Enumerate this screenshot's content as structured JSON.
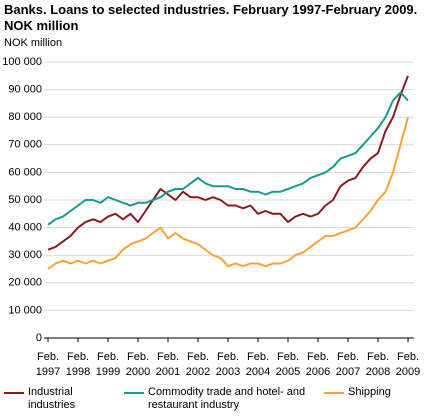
{
  "chart_data": {
    "type": "line",
    "title": "Banks. Loans to selected industries. February 1997-February 2009. NOK million",
    "y_label": "NOK million",
    "categories": [
      "Feb. 1997",
      null,
      null,
      null,
      "Feb. 1998",
      null,
      null,
      null,
      "Feb. 1999",
      null,
      null,
      null,
      "Feb. 2000",
      null,
      null,
      null,
      "Feb. 2001",
      null,
      null,
      null,
      "Feb. 2002",
      null,
      null,
      null,
      "Feb. 2003",
      null,
      null,
      null,
      "Feb. 2004",
      null,
      null,
      null,
      "Feb. 2005",
      null,
      null,
      null,
      "Feb. 2006",
      null,
      null,
      null,
      "Feb. 2007",
      null,
      null,
      null,
      "Feb. 2008",
      null,
      null,
      null,
      "Feb. 2009"
    ],
    "series": [
      {
        "name": "Industrial industries",
        "color": "#8b1a1f",
        "values": [
          32000,
          33000,
          35000,
          37000,
          40000,
          42000,
          43000,
          42000,
          44000,
          45000,
          43000,
          45000,
          42000,
          46000,
          50000,
          54000,
          52000,
          50000,
          53000,
          51000,
          51000,
          50000,
          51000,
          50000,
          48000,
          48000,
          47000,
          48000,
          45000,
          46000,
          45000,
          45000,
          42000,
          44000,
          45000,
          44000,
          45000,
          48000,
          50000,
          55000,
          57000,
          58000,
          62000,
          65000,
          67000,
          75000,
          80000,
          88000,
          95000
        ]
      },
      {
        "name": "Commodity trade and hotel- and restaurant industry",
        "color": "#1a9a8f",
        "values": [
          41000,
          43000,
          44000,
          46000,
          48000,
          50000,
          50000,
          49000,
          51000,
          50000,
          49000,
          48000,
          49000,
          49000,
          50000,
          51000,
          53000,
          54000,
          54000,
          56000,
          58000,
          56000,
          55000,
          55000,
          55000,
          54000,
          54000,
          53000,
          53000,
          52000,
          53000,
          53000,
          54000,
          55000,
          56000,
          58000,
          59000,
          60000,
          62000,
          65000,
          66000,
          67000,
          70000,
          73000,
          76000,
          80000,
          86000,
          89000,
          86000
        ]
      },
      {
        "name": "Shipping",
        "color": "#f7a239",
        "values": [
          25000,
          27000,
          28000,
          27000,
          28000,
          27000,
          28000,
          27000,
          28000,
          29000,
          32000,
          34000,
          35000,
          36000,
          38000,
          40000,
          36000,
          38000,
          36000,
          35000,
          34000,
          32000,
          30000,
          29000,
          26000,
          27000,
          26000,
          27000,
          27000,
          26000,
          27000,
          27000,
          28000,
          30000,
          31000,
          33000,
          35000,
          37000,
          37000,
          38000,
          39000,
          40000,
          43000,
          46000,
          50000,
          53000,
          60000,
          70000,
          80000
        ]
      }
    ],
    "ylim": [
      0,
      100000
    ],
    "yticks": [
      0,
      {
        "value": 10000,
        "label": "10 000"
      },
      {
        "value": 20000,
        "label": "20 000"
      },
      {
        "value": 30000,
        "label": "30 000"
      },
      {
        "value": 40000,
        "label": "40 000"
      },
      {
        "value": 50000,
        "label": "50 000"
      },
      {
        "value": 60000,
        "label": "60 000"
      },
      {
        "value": 70000,
        "label": "70 000"
      },
      {
        "value": 80000,
        "label": "80 000"
      },
      {
        "value": 90000,
        "label": "90 000"
      },
      {
        "value": 100000,
        "label": "100 000"
      }
    ],
    "grid": true
  }
}
